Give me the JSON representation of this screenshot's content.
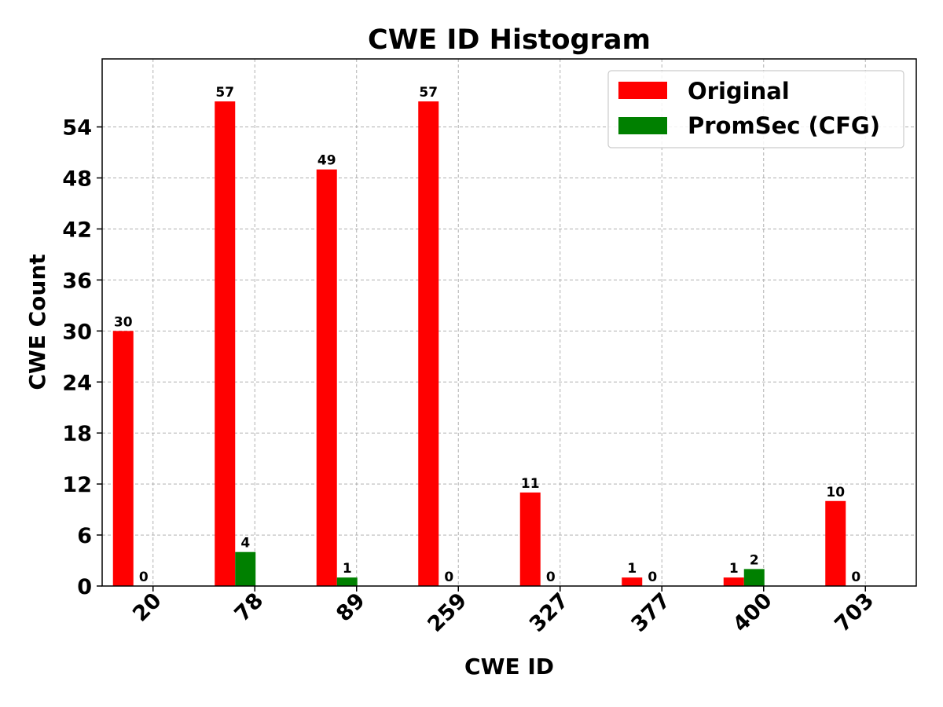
{
  "chart_data": {
    "type": "bar",
    "title": "CWE ID Histogram",
    "xlabel": "CWE ID",
    "ylabel": "CWE Count",
    "categories": [
      "20",
      "78",
      "89",
      "259",
      "327",
      "377",
      "400",
      "703"
    ],
    "series": [
      {
        "name": "Original",
        "color": "#ff0000",
        "values": [
          30,
          57,
          49,
          57,
          11,
          1,
          1,
          10
        ]
      },
      {
        "name": "PromSec (CFG)",
        "color": "#008000",
        "values": [
          0,
          4,
          1,
          0,
          0,
          0,
          2,
          0
        ]
      }
    ],
    "yticks": [
      0,
      6,
      12,
      18,
      24,
      30,
      36,
      42,
      48,
      54
    ],
    "ylim": [
      0,
      62
    ],
    "grid": true,
    "legend_position": "top-right"
  }
}
